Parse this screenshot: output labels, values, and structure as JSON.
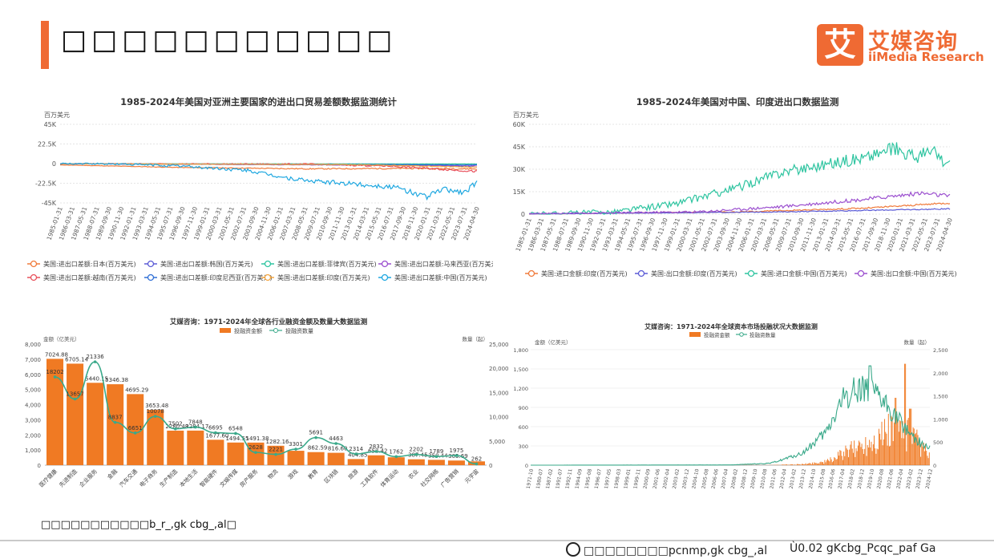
{
  "page": {
    "title": "□□□□□□□□□□□",
    "source_note": "□□□□□□□□□□□b_r_,gk cbg_,al□",
    "footer_web": "□□□□□□□□pcnmp,gk cbg_,al",
    "footer_right": "Ù0.02 gKcbg_Pcqc_paf Ga"
  },
  "logo": {
    "mark": "艾",
    "cn": "艾媒咨询",
    "en": "iiMedia Research"
  },
  "colors": {
    "accent": "#ef6a33",
    "orange": "#f07a23",
    "teal": "#3aa98a"
  },
  "chart_data": [
    {
      "type": "line",
      "title": "1985-2024年美国对亚洲主要国家的进出口贸易差额数据监测统计",
      "unit_label": "百万美元",
      "ylim": [
        -45000,
        45000
      ],
      "y_ticks": [
        "45K",
        "22.5K",
        "0",
        "-22.5K",
        "-45K"
      ],
      "x_ticks": [
        "1985-01-31",
        "1986-03-31",
        "1987-05-31",
        "1988-07-31",
        "1989-09-30",
        "1990-11-30",
        "1992-01-31",
        "1993-03-31",
        "1994-05-31",
        "1995-07-31",
        "1996-09-30",
        "1997-11-30",
        "1999-01-31",
        "2000-03-31",
        "2001-05-31",
        "2002-07-31",
        "2003-09-30",
        "2004-11-30",
        "2006-01-31",
        "2007-03-31",
        "2008-05-31",
        "2009-07-31",
        "2010-09-30",
        "2011-11-30",
        "2013-01-31",
        "2014-03-31",
        "2015-05-31",
        "2016-07-31",
        "2017-09-30",
        "2018-11-30",
        "2020-01-31",
        "2021-03-31",
        "2022-05-31",
        "2023-07-31",
        "2024-04-30"
      ],
      "grid": true,
      "legend_position": "bottom",
      "series": [
        {
          "name": "美国:进出口差额:日本(百万美元)",
          "color": "#f07a3a",
          "anchors": [
            [
              0,
              -1500
            ],
            [
              0.3,
              -4500
            ],
            [
              0.6,
              -6000
            ],
            [
              0.85,
              -5500
            ],
            [
              1,
              -6000
            ]
          ],
          "noise": 900
        },
        {
          "name": "美国:进出口差额:韩国(百万美元)",
          "color": "#5b5bd6",
          "anchors": [
            [
              0,
              -200
            ],
            [
              0.5,
              -800
            ],
            [
              0.85,
              -2000
            ],
            [
              1,
              -3500
            ]
          ],
          "noise": 500
        },
        {
          "name": "美国:进出口差额:菲律宾(百万美元)",
          "color": "#2ec4a0",
          "anchors": [
            [
              0,
              -100
            ],
            [
              1,
              -400
            ]
          ],
          "noise": 150
        },
        {
          "name": "美国:进出口差额:马来西亚(百万美元)",
          "color": "#9b4fcf",
          "anchors": [
            [
              0,
              -100
            ],
            [
              0.5,
              -1200
            ],
            [
              1,
              -2200
            ]
          ],
          "noise": 400
        },
        {
          "name": "美国:进出口差额:越南(百万美元)",
          "color": "#e8505b",
          "anchors": [
            [
              0,
              0
            ],
            [
              0.6,
              -600
            ],
            [
              0.8,
              -3000
            ],
            [
              1,
              -9000
            ]
          ],
          "noise": 1200
        },
        {
          "name": "美国:进出口差额:印度尼西亚(百万美元)",
          "color": "#2f6fd6",
          "anchors": [
            [
              0,
              -200
            ],
            [
              1,
              -1500
            ]
          ],
          "noise": 300
        },
        {
          "name": "美国:进出口差额:印度(百万美元)",
          "color": "#f5a742",
          "anchors": [
            [
              0,
              -100
            ],
            [
              0.7,
              -1200
            ],
            [
              1,
              -4000
            ]
          ],
          "noise": 500
        },
        {
          "name": "美国:进出口差额:中国(百万美元)",
          "color": "#1ea7e0",
          "anchors": [
            [
              0,
              0
            ],
            [
              0.15,
              -500
            ],
            [
              0.3,
              -3000
            ],
            [
              0.45,
              -8000
            ],
            [
              0.55,
              -17000
            ],
            [
              0.6,
              -20000
            ],
            [
              0.7,
              -23000
            ],
            [
              0.8,
              -27000
            ],
            [
              0.88,
              -38000
            ],
            [
              0.92,
              -29000
            ],
            [
              0.97,
              -33000
            ],
            [
              1,
              -21000
            ]
          ],
          "noise": 3500
        }
      ]
    },
    {
      "type": "line",
      "title": "1985-2024年美国对中国、印度进出口数据监测",
      "unit_label": "百万美元",
      "ylim": [
        0,
        60000
      ],
      "y_ticks": [
        "60K",
        "45K",
        "30K",
        "15K",
        "0"
      ],
      "x_ticks": [
        "1985-01-31",
        "1986-03-31",
        "1987-05-31",
        "1988-07-31",
        "1989-09-30",
        "1990-11-30",
        "1992-01-31",
        "1993-03-31",
        "1994-05-31",
        "1995-07-31",
        "1996-09-30",
        "1997-11-30",
        "1999-01-31",
        "2000-03-31",
        "2001-05-31",
        "2002-07-31",
        "2003-09-30",
        "2004-11-30",
        "2006-01-31",
        "2007-03-31",
        "2008-05-31",
        "2009-07-31",
        "2010-09-30",
        "2011-11-30",
        "2013-01-31",
        "2014-03-31",
        "2015-05-31",
        "2016-07-31",
        "2017-09-30",
        "2018-11-30",
        "2020-01-31",
        "2021-03-31",
        "2022-05-31",
        "2023-07-31",
        "2024-04-30"
      ],
      "grid": true,
      "legend_position": "bottom",
      "series": [
        {
          "name": "美国:进口金额:印度(百万美元)",
          "color": "#f07a3a",
          "anchors": [
            [
              0,
              100
            ],
            [
              0.5,
              1500
            ],
            [
              0.8,
              4000
            ],
            [
              1,
              7500
            ]
          ],
          "noise": 600
        },
        {
          "name": "美国:出口金额:印度(百万美元)",
          "color": "#5b5bd6",
          "anchors": [
            [
              0,
              100
            ],
            [
              0.6,
              1500
            ],
            [
              1,
              3500
            ]
          ],
          "noise": 400
        },
        {
          "name": "美国:进口金额:中国(百万美元)",
          "color": "#2ec4a0",
          "anchors": [
            [
              0,
              300
            ],
            [
              0.2,
              1500
            ],
            [
              0.35,
              7000
            ],
            [
              0.5,
              18000
            ],
            [
              0.6,
              28000
            ],
            [
              0.7,
              33000
            ],
            [
              0.8,
              38000
            ],
            [
              0.87,
              44000
            ],
            [
              0.92,
              38000
            ],
            [
              0.96,
              42000
            ],
            [
              1,
              31000
            ]
          ],
          "noise": 5000
        },
        {
          "name": "美国:出口金额:中国(百万美元)",
          "color": "#9b4fcf",
          "anchors": [
            [
              0,
              300
            ],
            [
              0.4,
              1500
            ],
            [
              0.6,
              5000
            ],
            [
              0.8,
              10000
            ],
            [
              0.93,
              14000
            ],
            [
              1,
              12000
            ]
          ],
          "noise": 1500
        }
      ]
    },
    {
      "type": "bar",
      "title": "艾媒咨询：1971-2024年全球各行业融资金额及数量大数据监测",
      "ylabel": "金额（亿美元）",
      "y2label": "数量（起）",
      "ylim": [
        0,
        8000
      ],
      "y2lim": [
        0,
        25000
      ],
      "y_ticks": [
        "8,000",
        "7,000",
        "6,000",
        "5,000",
        "4,000",
        "3,000",
        "2,000",
        "1,000",
        "0"
      ],
      "y2_ticks": [
        "25,000",
        "20,000",
        "15,000",
        "10,000",
        "5,000",
        "0"
      ],
      "legend": [
        "投融资金额",
        "投融资数量"
      ],
      "legend_position": "top",
      "categories": [
        "医疗健康",
        "先进制造",
        "企业服务",
        "金融",
        "汽车交通",
        "电子商务",
        "生产制造",
        "本地生活",
        "智能硬件",
        "文娱传媒",
        "房产服务",
        "物流",
        "游戏",
        "教育",
        "区块链",
        "旅游",
        "工具软件",
        "体育运动",
        "农业",
        "社交网络",
        "广告营销",
        "元宇宙"
      ],
      "values": [
        7024.88,
        6705.14,
        5440.15,
        5346.38,
        4695.29,
        3653.48,
        2280.48,
        2284.17,
        1677.6,
        1494.55,
        1491.38,
        1282.16,
        950.0,
        862.59,
        816.6,
        404.85,
        652.42,
        519.9,
        387.45,
        350.44,
        305.69,
        250.0
      ],
      "value_labels": [
        "7024.88",
        "6705.14",
        "5440.15",
        "5346.38",
        "4695.29",
        "3653.48",
        "2280.48",
        "2284.17",
        "1677.60",
        "1494.55",
        "1491.38",
        "1282.16",
        "",
        "862.59",
        "816.60",
        "404.85",
        "652.42",
        "",
        "387.45",
        "350.44",
        "305.69",
        ""
      ],
      "counts": [
        18202,
        13657,
        21336,
        8837,
        6651,
        10078,
        7502,
        7848,
        6695,
        6548,
        2628,
        2221,
        3301,
        5691,
        4463,
        2314,
        2832,
        1762,
        2202,
        1789,
        1975,
        262
      ],
      "count_labels": [
        "18202",
        "13657",
        "21336",
        "8837",
        "6651",
        "10078",
        "7502",
        "7848",
        "6695",
        "6548",
        "2628",
        "2221",
        "3301",
        "5691",
        "4463",
        "2314",
        "2832",
        "1762",
        "2202",
        "1789",
        "1975",
        "262"
      ]
    },
    {
      "type": "bar",
      "title": "艾媒咨询：1971-2024年全球资本市场投融状况大数据监测",
      "ylabel": "金额（亿美元）",
      "y2label": "数量（起）",
      "ylim": [
        0,
        1800
      ],
      "y2lim": [
        0,
        2500
      ],
      "y_ticks": [
        "1,800",
        "1,500",
        "1,200",
        "900",
        "600",
        "300",
        "0"
      ],
      "y2_ticks": [
        "2,500",
        "2,000",
        "1,500",
        "1,000",
        "500",
        "0"
      ],
      "legend": [
        "投融资金额",
        "投融资数量"
      ],
      "legend_position": "top",
      "x_ticks": [
        "1971-10",
        "1980-07",
        "1987-02",
        "1991-07",
        "1992-11",
        "1994-09",
        "1995-08",
        "1996-07",
        "1997-05",
        "1998-03",
        "1999-01",
        "1999-11",
        "2000-09",
        "2001-06",
        "2002-04",
        "2003-02",
        "2003-12",
        "2004-10",
        "2005-08",
        "2006-06",
        "2007-04",
        "2008-02",
        "2008-12",
        "2009-10",
        "2010-08",
        "2011-06",
        "2012-04",
        "2013-02",
        "2013-12",
        "2014-10",
        "2015-08",
        "2016-06",
        "2017-04",
        "2018-02",
        "2018-12",
        "2019-10",
        "2020-08",
        "2021-06",
        "2022-04",
        "2023-02",
        "2023-12",
        "2024-12"
      ],
      "amount_anchors": [
        [
          0,
          0
        ],
        [
          0.6,
          2
        ],
        [
          0.68,
          15
        ],
        [
          0.74,
          60
        ],
        [
          0.8,
          250
        ],
        [
          0.88,
          520
        ],
        [
          0.92,
          700
        ],
        [
          0.96,
          450
        ],
        [
          1,
          150
        ]
      ],
      "amount_spikes": [
        [
          0.936,
          1580
        ],
        [
          0.913,
          1050
        ],
        [
          0.95,
          880
        ]
      ],
      "count_anchors": [
        [
          0,
          0
        ],
        [
          0.5,
          5
        ],
        [
          0.6,
          40
        ],
        [
          0.68,
          250
        ],
        [
          0.74,
          700
        ],
        [
          0.78,
          1400
        ],
        [
          0.83,
          1750
        ],
        [
          0.86,
          1500
        ],
        [
          0.89,
          1300
        ],
        [
          0.92,
          1000
        ],
        [
          0.95,
          700
        ],
        [
          0.98,
          450
        ],
        [
          1,
          380
        ]
      ],
      "count_spikes": [
        [
          0.85,
          2150
        ]
      ]
    }
  ]
}
